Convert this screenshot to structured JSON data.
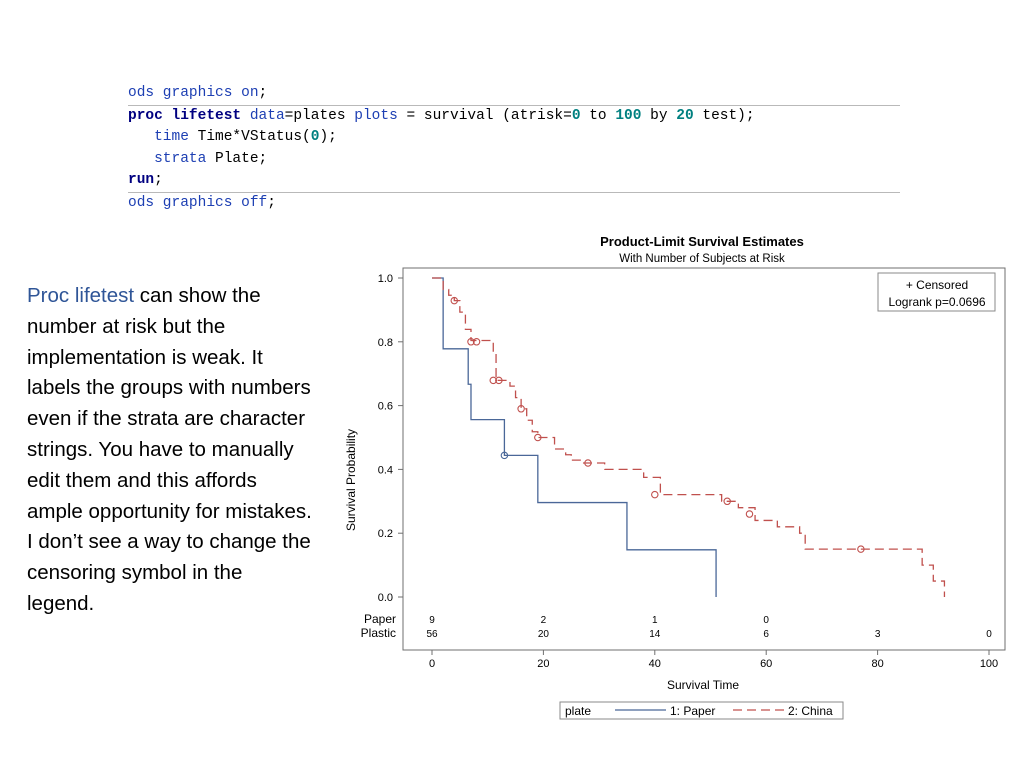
{
  "code": {
    "line1": {
      "a": "ods graphics on",
      "b": ";"
    },
    "line2": {
      "proc": "proc",
      "lifetest": "lifetest",
      "data_kw": "data",
      "eq_plates": "=plates ",
      "plots_kw": "plots",
      "eq_survival": " = survival (atrisk=",
      "zero": "0",
      "to_kw": " to ",
      "hundred": "100",
      "by_kw": " by ",
      "twenty": "20",
      "tail": " test);"
    },
    "line3": {
      "time_kw": "time",
      "expr": " Time*VStatus(",
      "zero": "0",
      "tail": ");"
    },
    "line4": {
      "strata_kw": "strata",
      "tail": " Plate;"
    },
    "line5": {
      "run": "run",
      "tail": ";"
    },
    "line6": {
      "a": "ods graphics off",
      "b": ";"
    }
  },
  "note": {
    "highlight": "Proc lifetest",
    "body": " can show the number at risk but the implementation is weak.  It labels the groups with numbers even if the strata are character strings. You have to manually edit them and this affords ample opportunity for mistakes. I don’t see a way to change the censoring symbol in the legend."
  },
  "chart_data": {
    "type": "line",
    "title": "Product-Limit Survival Estimates",
    "subtitle": "With Number of Subjects at Risk",
    "xlabel": "Survival Time",
    "ylabel": "Survival Probability",
    "xlim": [
      0,
      100
    ],
    "ylim": [
      0,
      1
    ],
    "x_ticks": [
      "0",
      "20",
      "40",
      "60",
      "80",
      "100"
    ],
    "y_ticks": [
      "0.0",
      "0.2",
      "0.4",
      "0.6",
      "0.8",
      "1.0"
    ],
    "inset": {
      "line1": "+ Censored",
      "line2": "Logrank p=0.0696"
    },
    "legend": {
      "title": "plate",
      "position": "bottom"
    },
    "colors": {
      "paper": "#4a6798",
      "plastic": "#c0504d"
    },
    "series": [
      {
        "name": "1: Paper",
        "label": "Paper",
        "style": "solid",
        "steps": [
          [
            0,
            1.0
          ],
          [
            2,
            0.778
          ],
          [
            6.5,
            0.667
          ],
          [
            7,
            0.556
          ],
          [
            13,
            0.444
          ],
          [
            19,
            0.296
          ],
          [
            35,
            0.148
          ],
          [
            51,
            0.0
          ]
        ],
        "censored": [
          [
            13,
            0.444
          ]
        ]
      },
      {
        "name": "2: China",
        "label": "Plastic",
        "style": "dashed",
        "steps": [
          [
            0,
            1.0
          ],
          [
            2,
            0.964
          ],
          [
            3,
            0.946
          ],
          [
            4,
            0.929
          ],
          [
            5,
            0.893
          ],
          [
            6,
            0.839
          ],
          [
            7,
            0.804
          ],
          [
            11,
            0.768
          ],
          [
            11.5,
            0.679
          ],
          [
            14,
            0.661
          ],
          [
            15,
            0.625
          ],
          [
            16,
            0.59
          ],
          [
            17,
            0.554
          ],
          [
            18,
            0.518
          ],
          [
            19,
            0.5
          ],
          [
            22,
            0.464
          ],
          [
            24,
            0.446
          ],
          [
            25,
            0.429
          ],
          [
            27,
            0.42
          ],
          [
            31,
            0.4
          ],
          [
            38,
            0.375
          ],
          [
            41,
            0.321
          ],
          [
            52,
            0.3
          ],
          [
            55,
            0.28
          ],
          [
            58,
            0.24
          ],
          [
            62,
            0.22
          ],
          [
            66,
            0.2
          ],
          [
            67,
            0.15
          ],
          [
            88,
            0.1
          ],
          [
            90,
            0.05
          ],
          [
            92,
            0.0
          ]
        ],
        "censored": [
          [
            4,
            0.929
          ],
          [
            7,
            0.8
          ],
          [
            8,
            0.8
          ],
          [
            11,
            0.679
          ],
          [
            12,
            0.679
          ],
          [
            16,
            0.59
          ],
          [
            19,
            0.5
          ],
          [
            28,
            0.42
          ],
          [
            40,
            0.321
          ],
          [
            53,
            0.3
          ],
          [
            57,
            0.26
          ],
          [
            77,
            0.15
          ]
        ]
      }
    ],
    "at_risk": {
      "times": [
        0,
        20,
        40,
        60,
        80,
        100
      ],
      "rows": [
        {
          "label": "Paper",
          "values": [
            "9",
            "2",
            "1",
            "0",
            "",
            ""
          ]
        },
        {
          "label": "Plastic",
          "values": [
            "56",
            "20",
            "14",
            "6",
            "3",
            "0"
          ]
        }
      ]
    }
  }
}
